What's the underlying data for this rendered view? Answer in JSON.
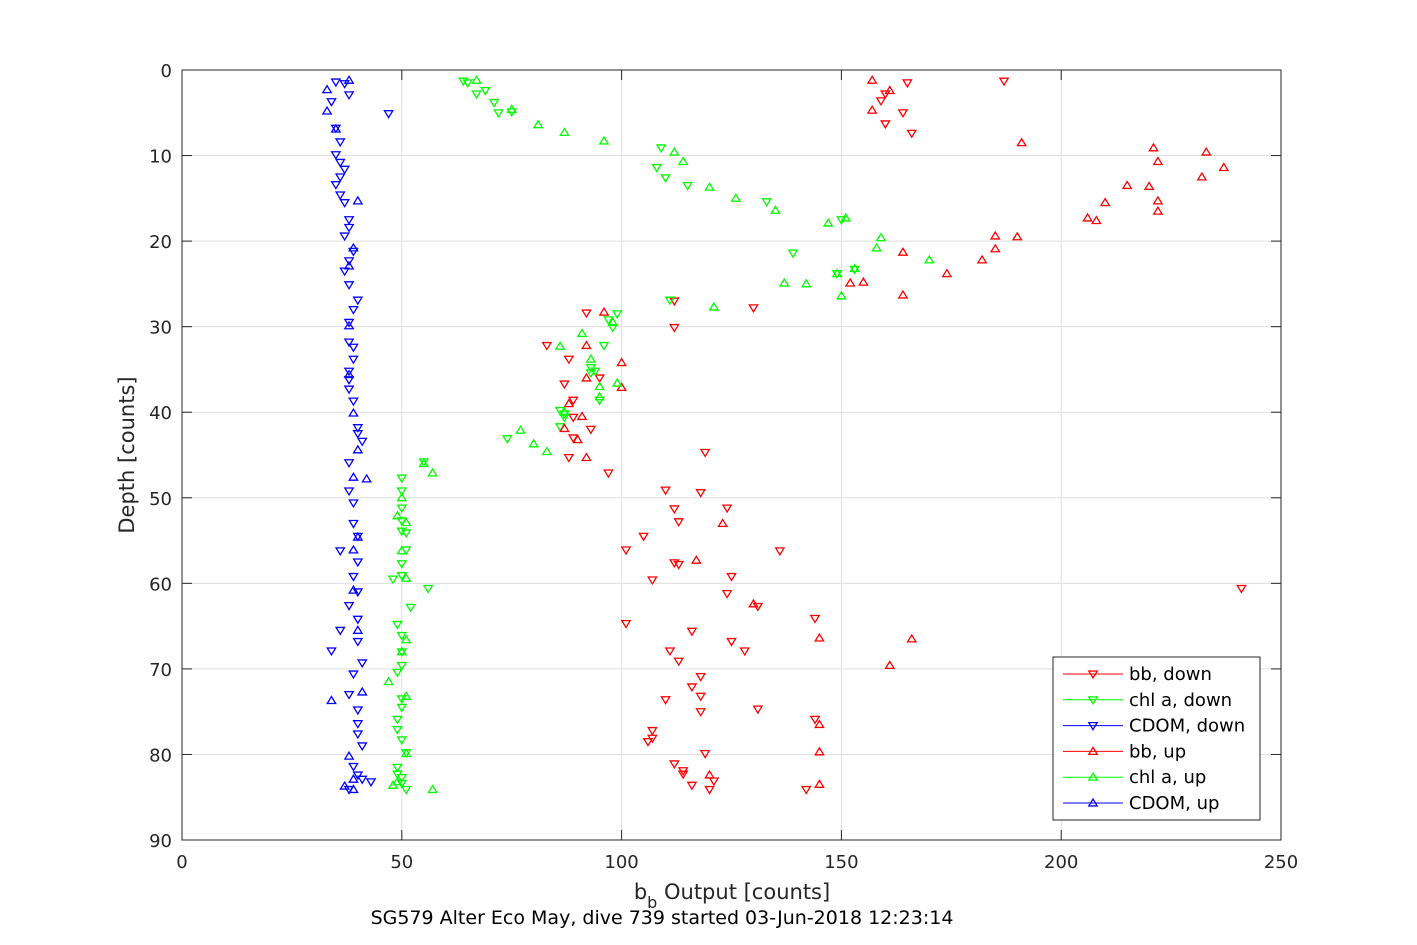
{
  "chart_data": {
    "type": "scatter",
    "xlabel_main": "b",
    "xlabel_sub": "b",
    "xlabel_rest": " Output [counts]",
    "ylabel": "Depth [counts]",
    "footer": "SG579 Alter Eco May, dive 739 started 03-Jun-2018 12:23:14",
    "xlim": [
      0,
      250
    ],
    "ylim": [
      0,
      90
    ],
    "y_reversed": true,
    "x_ticks": [
      0,
      50,
      100,
      150,
      200,
      250
    ],
    "y_ticks": [
      0,
      10,
      20,
      30,
      40,
      50,
      60,
      70,
      80,
      90
    ],
    "grid": true,
    "legend_position": "bottom-right",
    "series": [
      {
        "name": "bb, down",
        "color": "#ff0000",
        "marker": "triangle-down",
        "points": [
          [
            187,
            1.3
          ],
          [
            165,
            1.5
          ],
          [
            160,
            2.8
          ],
          [
            159,
            3.6
          ],
          [
            164,
            5
          ],
          [
            166,
            7.4
          ],
          [
            160,
            6.3
          ],
          [
            112,
            27
          ],
          [
            130,
            27.8
          ],
          [
            112,
            30.1
          ],
          [
            92,
            28.4
          ],
          [
            83,
            32.2
          ],
          [
            88,
            33.8
          ],
          [
            87,
            36.7
          ],
          [
            95,
            36
          ],
          [
            89,
            38.6
          ],
          [
            89,
            43
          ],
          [
            89,
            40.6
          ],
          [
            93,
            42
          ],
          [
            97,
            47.1
          ],
          [
            88,
            45.3
          ],
          [
            119,
            44.7
          ],
          [
            118,
            49.4
          ],
          [
            110,
            49.1
          ],
          [
            112,
            51.3
          ],
          [
            124,
            51.2
          ],
          [
            113,
            52.8
          ],
          [
            105,
            54.5
          ],
          [
            101,
            56.1
          ],
          [
            112,
            57.6
          ],
          [
            113,
            57.8
          ],
          [
            107,
            59.6
          ],
          [
            125,
            59.2
          ],
          [
            124,
            61.2
          ],
          [
            131,
            62.7
          ],
          [
            144,
            64.1
          ],
          [
            101,
            64.7
          ],
          [
            116,
            65.6
          ],
          [
            125,
            66.8
          ],
          [
            128,
            67.9
          ],
          [
            111,
            67.9
          ],
          [
            113,
            69.1
          ],
          [
            118,
            70.9
          ],
          [
            116,
            72.1
          ],
          [
            118,
            73.2
          ],
          [
            110,
            73.6
          ],
          [
            131,
            74.7
          ],
          [
            118,
            75
          ],
          [
            144,
            75.9
          ],
          [
            107,
            77.2
          ],
          [
            107,
            78.1
          ],
          [
            106,
            78.5
          ],
          [
            119,
            79.9
          ],
          [
            112,
            81.1
          ],
          [
            114,
            81.9
          ],
          [
            114,
            82.3
          ],
          [
            121,
            83.1
          ],
          [
            116,
            83.6
          ],
          [
            120,
            84.1
          ],
          [
            142,
            84.1
          ],
          [
            241,
            60.6
          ],
          [
            136,
            56.2
          ]
        ]
      },
      {
        "name": "chl a, down",
        "color": "#00ff00",
        "marker": "triangle-down",
        "points": [
          [
            64,
            1.3
          ],
          [
            65,
            1.5
          ],
          [
            67,
            2.8
          ],
          [
            69,
            2.4
          ],
          [
            71,
            3.8
          ],
          [
            72,
            5
          ],
          [
            75,
            4.9
          ],
          [
            109,
            9.1
          ],
          [
            108,
            11.4
          ],
          [
            110,
            12.6
          ],
          [
            115,
            13.5
          ],
          [
            133,
            15.4
          ],
          [
            150,
            17.5
          ],
          [
            153,
            23.3
          ],
          [
            139,
            21.4
          ],
          [
            149,
            23.8
          ],
          [
            111,
            26.9
          ],
          [
            99,
            28.5
          ],
          [
            97,
            29.2
          ],
          [
            98,
            30.1
          ],
          [
            96,
            32.2
          ],
          [
            93,
            34.8
          ],
          [
            93,
            35.4
          ],
          [
            94,
            35.2
          ],
          [
            95,
            38.6
          ],
          [
            86,
            39.8
          ],
          [
            87,
            40.2
          ],
          [
            87,
            40.6
          ],
          [
            86,
            41.7
          ],
          [
            74,
            43.1
          ],
          [
            55,
            45.8
          ],
          [
            50,
            47.7
          ],
          [
            50,
            49.2
          ],
          [
            50,
            51.2
          ],
          [
            50,
            52.7
          ],
          [
            50,
            53.9
          ],
          [
            51,
            54.1
          ],
          [
            51,
            56.1
          ],
          [
            50,
            57.7
          ],
          [
            50,
            59.1
          ],
          [
            48,
            59.5
          ],
          [
            56,
            60.6
          ],
          [
            52,
            62.8
          ],
          [
            49,
            64.8
          ],
          [
            50,
            66.1
          ],
          [
            50,
            68
          ],
          [
            50,
            69.6
          ],
          [
            49,
            70.4
          ],
          [
            50,
            73.5
          ],
          [
            50,
            74.5
          ],
          [
            49,
            75.9
          ],
          [
            49,
            77.1
          ],
          [
            50,
            78.3
          ],
          [
            51,
            79.8
          ],
          [
            49,
            81.5
          ],
          [
            49,
            82.3
          ],
          [
            50,
            82.7
          ],
          [
            50,
            83.4
          ],
          [
            51,
            84.1
          ]
        ]
      },
      {
        "name": "CDOM, down",
        "color": "#0000ff",
        "marker": "triangle-down",
        "points": [
          [
            35,
            1.4
          ],
          [
            37,
            1.6
          ],
          [
            38,
            2.9
          ],
          [
            34,
            3.7
          ],
          [
            47,
            5.1
          ],
          [
            35,
            6.8
          ],
          [
            36,
            8.4
          ],
          [
            35,
            9.9
          ],
          [
            36,
            10.8
          ],
          [
            37,
            11.6
          ],
          [
            36,
            12.5
          ],
          [
            35,
            13.4
          ],
          [
            36,
            14.6
          ],
          [
            37,
            15.5
          ],
          [
            38,
            17.5
          ],
          [
            38,
            18.4
          ],
          [
            37,
            19.4
          ],
          [
            39,
            21.2
          ],
          [
            38,
            22.3
          ],
          [
            37,
            23.5
          ],
          [
            38,
            25.1
          ],
          [
            40,
            26.9
          ],
          [
            39,
            28
          ],
          [
            38,
            29.5
          ],
          [
            38,
            31.8
          ],
          [
            39,
            32.4
          ],
          [
            39,
            33.8
          ],
          [
            38,
            35.2
          ],
          [
            38,
            36.2
          ],
          [
            38,
            37.3
          ],
          [
            39,
            38.7
          ],
          [
            40,
            41.8
          ],
          [
            40,
            42.5
          ],
          [
            41,
            43.4
          ],
          [
            38,
            45.9
          ],
          [
            38,
            49.2
          ],
          [
            39,
            50.6
          ],
          [
            39,
            53
          ],
          [
            40,
            54.5
          ],
          [
            36,
            56.2
          ],
          [
            40,
            57.5
          ],
          [
            39,
            59.2
          ],
          [
            40,
            61
          ],
          [
            38,
            62.6
          ],
          [
            40,
            64.2
          ],
          [
            36,
            65.5
          ],
          [
            40,
            66.8
          ],
          [
            34,
            67.9
          ],
          [
            41,
            69.3
          ],
          [
            39,
            70.6
          ],
          [
            38,
            73
          ],
          [
            40,
            74.8
          ],
          [
            40,
            76.4
          ],
          [
            40,
            77.6
          ],
          [
            41,
            79
          ],
          [
            39,
            81.4
          ],
          [
            40,
            82.4
          ],
          [
            38,
            84.1
          ],
          [
            41,
            82.9
          ],
          [
            43,
            83.2
          ]
        ]
      },
      {
        "name": "bb, up",
        "color": "#ff0000",
        "marker": "triangle-up",
        "points": [
          [
            157,
            1.2
          ],
          [
            161,
            2.4
          ],
          [
            157,
            4.7
          ],
          [
            191,
            8.5
          ],
          [
            221,
            9.1
          ],
          [
            233,
            9.6
          ],
          [
            222,
            10.7
          ],
          [
            237,
            11.4
          ],
          [
            232,
            12.5
          ],
          [
            215,
            13.5
          ],
          [
            220,
            13.6
          ],
          [
            222,
            15.3
          ],
          [
            210,
            15.5
          ],
          [
            222,
            16.5
          ],
          [
            206,
            17.3
          ],
          [
            208,
            17.6
          ],
          [
            185,
            19.4
          ],
          [
            190,
            19.5
          ],
          [
            164,
            21.3
          ],
          [
            185,
            20.9
          ],
          [
            182,
            22.2
          ],
          [
            174,
            23.8
          ],
          [
            155,
            24.8
          ],
          [
            152,
            24.9
          ],
          [
            164,
            26.3
          ],
          [
            96,
            28.3
          ],
          [
            92,
            32.2
          ],
          [
            100,
            34.2
          ],
          [
            92,
            36
          ],
          [
            100,
            37.1
          ],
          [
            91,
            40.5
          ],
          [
            88,
            39
          ],
          [
            90,
            43.2
          ],
          [
            92,
            45.3
          ],
          [
            87,
            41.9
          ],
          [
            123,
            53
          ],
          [
            117,
            57.3
          ],
          [
            130,
            62.4
          ],
          [
            145,
            66.4
          ],
          [
            161,
            69.6
          ],
          [
            145,
            76.5
          ],
          [
            145,
            79.7
          ],
          [
            145,
            83.5
          ],
          [
            120,
            82.4
          ],
          [
            166,
            66.5
          ]
        ]
      },
      {
        "name": "chl a, up",
        "color": "#00ff00",
        "marker": "triangle-up",
        "points": [
          [
            67,
            1.2
          ],
          [
            75,
            4.6
          ],
          [
            81,
            6.4
          ],
          [
            87,
            7.3
          ],
          [
            96,
            8.3
          ],
          [
            112,
            9.6
          ],
          [
            114,
            10.7
          ],
          [
            120,
            13.7
          ],
          [
            126,
            15
          ],
          [
            135,
            16.4
          ],
          [
            147,
            17.9
          ],
          [
            151,
            17.3
          ],
          [
            159,
            19.6
          ],
          [
            158,
            20.8
          ],
          [
            170,
            22.2
          ],
          [
            153,
            23.2
          ],
          [
            149,
            23.8
          ],
          [
            137,
            24.9
          ],
          [
            142,
            25
          ],
          [
            150,
            26.4
          ],
          [
            121,
            27.7
          ],
          [
            98,
            29.5
          ],
          [
            91,
            30.8
          ],
          [
            86,
            32.3
          ],
          [
            93,
            33.8
          ],
          [
            95,
            37
          ],
          [
            99,
            36.6
          ],
          [
            95,
            38.2
          ],
          [
            87,
            40
          ],
          [
            77,
            42.1
          ],
          [
            80,
            43.7
          ],
          [
            83,
            44.6
          ],
          [
            55,
            46
          ],
          [
            57,
            47.1
          ],
          [
            50,
            50
          ],
          [
            49,
            52.1
          ],
          [
            51,
            52.9
          ],
          [
            50,
            56.2
          ],
          [
            51,
            59.4
          ],
          [
            51,
            66.6
          ],
          [
            50,
            68
          ],
          [
            47,
            71.5
          ],
          [
            51,
            73.2
          ],
          [
            51,
            79.9
          ],
          [
            49,
            83.2
          ],
          [
            57,
            84.1
          ],
          [
            48,
            83.6
          ]
        ]
      },
      {
        "name": "CDOM, up",
        "color": "#0000ff",
        "marker": "triangle-up",
        "points": [
          [
            38,
            1.2
          ],
          [
            33,
            2.3
          ],
          [
            33,
            4.8
          ],
          [
            35,
            6.9
          ],
          [
            40,
            15.3
          ],
          [
            39,
            20.8
          ],
          [
            38,
            22.9
          ],
          [
            38,
            29.9
          ],
          [
            38,
            35.6
          ],
          [
            39,
            40.1
          ],
          [
            40,
            44.4
          ],
          [
            39,
            47.6
          ],
          [
            42,
            47.8
          ],
          [
            40,
            54.6
          ],
          [
            39,
            56.1
          ],
          [
            39,
            60.8
          ],
          [
            40,
            65.5
          ],
          [
            41,
            72.7
          ],
          [
            34,
            73.7
          ],
          [
            38,
            80.2
          ],
          [
            39,
            82.9
          ],
          [
            37,
            83.7
          ],
          [
            39,
            84.1
          ]
        ]
      }
    ]
  }
}
